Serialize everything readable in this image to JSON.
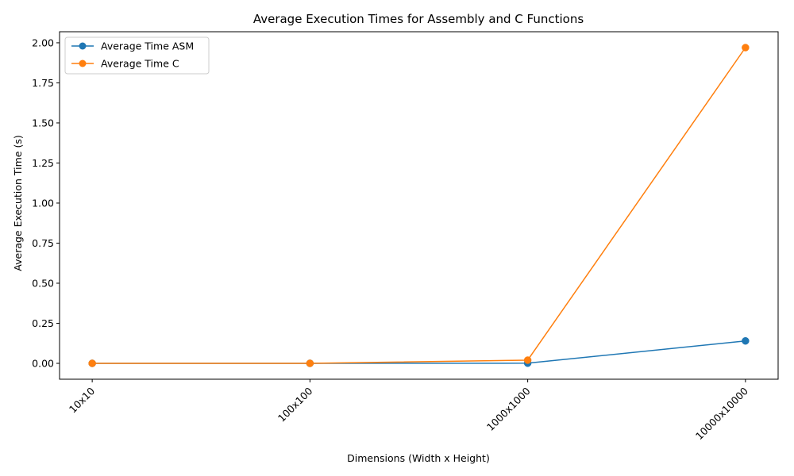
{
  "chart_data": {
    "type": "line",
    "title": "Average Execution Times for Assembly and C Functions",
    "xlabel": "Dimensions (Width x Height)",
    "ylabel": "Average Execution Time (s)",
    "categories": [
      "10x10",
      "100x100",
      "1000x1000",
      "10000x10000"
    ],
    "series": [
      {
        "name": "Average Time ASM",
        "color": "#1f77b4",
        "values": [
          0.0,
          0.0,
          0.001,
          0.14
        ]
      },
      {
        "name": "Average Time C",
        "color": "#ff7f0e",
        "values": [
          0.0,
          0.0002,
          0.02,
          1.97
        ]
      }
    ],
    "ylim": [
      -0.099,
      2.069
    ],
    "yticks": [
      0.0,
      0.25,
      0.5,
      0.75,
      1.0,
      1.25,
      1.5,
      1.75,
      2.0
    ],
    "ytick_labels": [
      "0.00",
      "0.25",
      "0.50",
      "0.75",
      "1.00",
      "1.25",
      "1.50",
      "1.75",
      "2.00"
    ],
    "grid": false,
    "legend_position": "top-left",
    "marker": "circle",
    "xtick_rotation": 45
  }
}
